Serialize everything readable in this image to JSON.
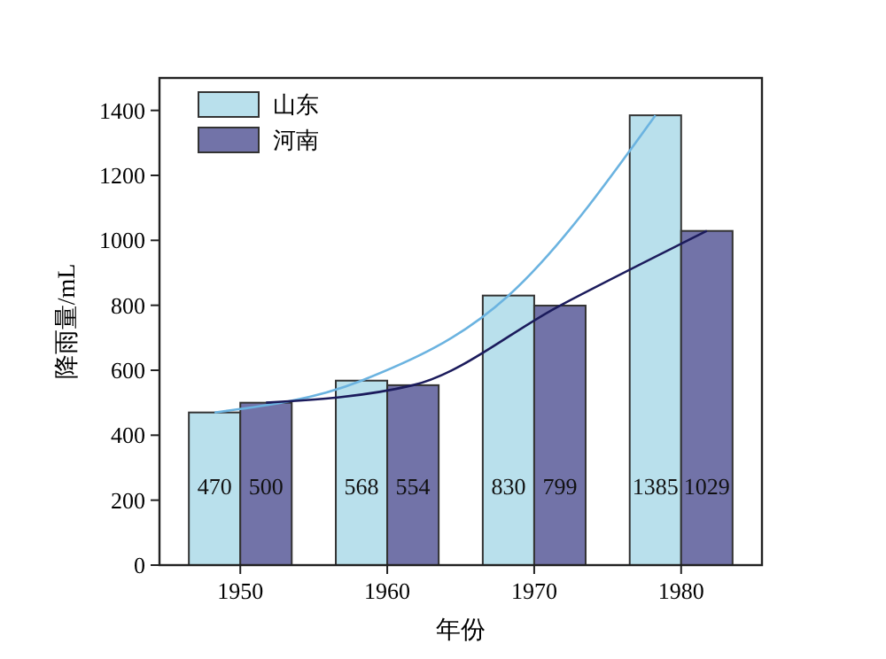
{
  "chart_data": {
    "type": "bar",
    "xlabel": "年份",
    "ylabel": "降雨量/mL",
    "categories": [
      "1950",
      "1960",
      "1970",
      "1980"
    ],
    "series": [
      {
        "name": "山东",
        "color": "#b9e0ec",
        "values": [
          470,
          568,
          830,
          1385
        ],
        "value_labels": [
          "470",
          "568",
          "830",
          "1385"
        ]
      },
      {
        "name": "河南",
        "color": "#7273a8",
        "values": [
          500,
          554,
          799,
          1029
        ],
        "value_labels": [
          "500",
          "554",
          "799",
          "1029"
        ]
      },
      {
        "type": "line",
        "color": "#6bb3e0",
        "values": [
          470,
          568,
          830,
          1385
        ]
      },
      {
        "type": "line",
        "color": "#1b1b5c",
        "values": [
          500,
          554,
          799,
          1029
        ]
      }
    ],
    "ylim": [
      0,
      1500
    ],
    "yticks": [
      0,
      200,
      400,
      600,
      800,
      1000,
      1200,
      1400
    ],
    "legend": "top left",
    "grid": false
  }
}
